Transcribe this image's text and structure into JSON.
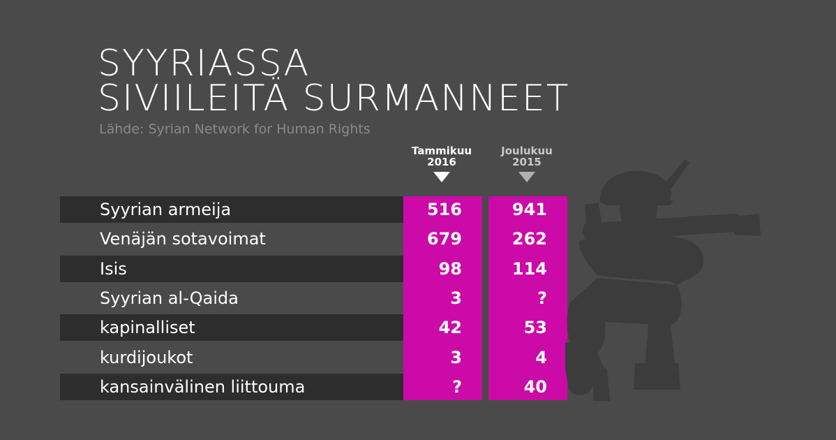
{
  "title_lines": [
    "SYYRIASSA",
    "SIVIILEITÄ SURMANNEET"
  ],
  "source": "Lähde: Syrian Network for Human Rights",
  "columns": [
    {
      "line1": "Tammikuu",
      "line2": "2016"
    },
    {
      "line1": "Joulukuu",
      "line2": "2015"
    }
  ],
  "colors": {
    "background": "#4a4a4a",
    "row_band": "#2d2d2d",
    "accent": "#cc0aa8"
  },
  "chart_data": {
    "type": "table",
    "title": "SYYRIASSA SIVIILEITÄ SURMANNEET",
    "categories": [
      "Syyrian armeija",
      "Venäjän sotavoimat",
      "Isis",
      "Syyrian al-Qaida",
      "kapinalliset",
      "kurdijoukot",
      "kansainvälinen liittouma"
    ],
    "series": [
      {
        "name": "Tammikuu 2016",
        "values": [
          "516",
          "679",
          "98",
          "3",
          "42",
          "3",
          "?"
        ]
      },
      {
        "name": "Joulukuu 2015",
        "values": [
          "941",
          "262",
          "114",
          "?",
          "53",
          "4",
          "40"
        ]
      }
    ]
  }
}
